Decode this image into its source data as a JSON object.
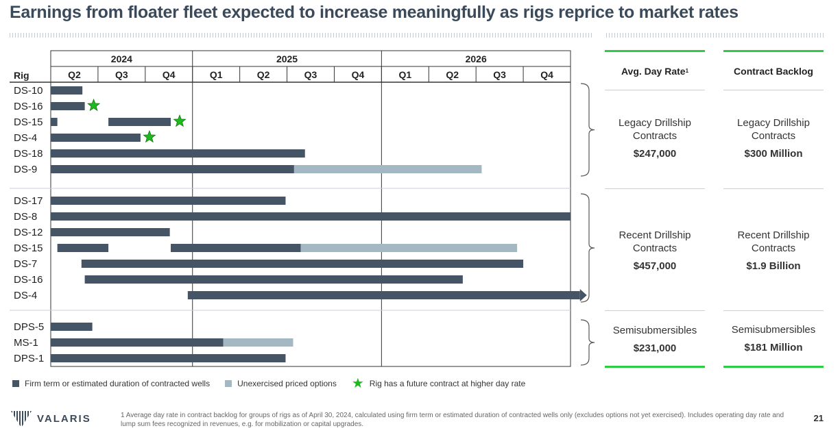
{
  "page": {
    "title": "Earnings from floater fleet expected to increase meaningfully as rigs reprice to market rates",
    "page_number": "21",
    "logo_text": "VALARIS",
    "footnote": "1 Average day rate in contract backlog for groups of rigs as of April 30, 2024, calculated using firm term or estimated duration of contracted wells only (excludes options not yet exercised). Includes operating day rate and lump sum fees recognized in revenues, e.g. for mobilization or capital upgrades."
  },
  "colors": {
    "firm": "#465566",
    "option": "#a4b8c4",
    "star": "#1fb81f",
    "accent": "#2ecc40",
    "title": "#3b4a5a"
  },
  "legend": {
    "firm": "Firm term or estimated duration of contracted wells",
    "option": "Unexercised priced options",
    "star": "Rig has a future contract at higher day rate"
  },
  "table": {
    "col_avg_header": "Avg. Day Rate",
    "col_avg_sup": "1",
    "col_backlog_header": "Contract Backlog",
    "groups": [
      {
        "label": "Legacy Drillship Contracts",
        "avg_day_rate": "$247,000",
        "backlog_label": "Legacy Drillship Contracts",
        "backlog": "$300 Million"
      },
      {
        "label": "Recent Drillship Contracts",
        "avg_day_rate": "$457,000",
        "backlog_label": "Recent Drillship Contracts",
        "backlog": "$1.9 Billion"
      },
      {
        "label": "Semisubmersibles",
        "avg_day_rate": "$231,000",
        "backlog_label": "Semisubmersibles",
        "backlog": "$181 Million"
      }
    ]
  },
  "chart_data": {
    "type": "gantt",
    "row_header": "Rig",
    "years": [
      "2024",
      "2025",
      "2026"
    ],
    "quarters": [
      {
        "year": "2024",
        "label": "Q2"
      },
      {
        "year": "2024",
        "label": "Q3"
      },
      {
        "year": "2024",
        "label": "Q4"
      },
      {
        "year": "2025",
        "label": "Q1"
      },
      {
        "year": "2025",
        "label": "Q2"
      },
      {
        "year": "2025",
        "label": "Q3"
      },
      {
        "year": "2025",
        "label": "Q4"
      },
      {
        "year": "2026",
        "label": "Q1"
      },
      {
        "year": "2026",
        "label": "Q2"
      },
      {
        "year": "2026",
        "label": "Q3"
      },
      {
        "year": "2026",
        "label": "Q4"
      }
    ],
    "time_unit": "quarters elapsed since start of 2024 Q2",
    "groups": [
      {
        "name": "Legacy Drillship Contracts",
        "rigs": [
          {
            "rig": "DS-10",
            "segments": [
              {
                "start": 0.0,
                "end": 0.67,
                "kind": "firm"
              }
            ],
            "star": false
          },
          {
            "rig": "DS-16",
            "segments": [
              {
                "start": 0.0,
                "end": 0.72,
                "kind": "firm"
              }
            ],
            "star": true
          },
          {
            "rig": "DS-15",
            "segments": [
              {
                "start": 0.0,
                "end": 0.14,
                "kind": "firm"
              },
              {
                "start": 1.22,
                "end": 2.54,
                "kind": "firm"
              }
            ],
            "star": true
          },
          {
            "rig": "DS-4",
            "segments": [
              {
                "start": 0.0,
                "end": 1.9,
                "kind": "firm"
              }
            ],
            "star": true
          },
          {
            "rig": "DS-18",
            "segments": [
              {
                "start": 0.0,
                "end": 5.38,
                "kind": "firm"
              }
            ],
            "star": false
          },
          {
            "rig": "DS-9",
            "segments": [
              {
                "start": 0.0,
                "end": 5.15,
                "kind": "firm"
              },
              {
                "start": 5.15,
                "end": 9.12,
                "kind": "option"
              }
            ],
            "star": false
          }
        ]
      },
      {
        "name": "Recent Drillship Contracts",
        "rigs": [
          {
            "rig": "DS-17",
            "segments": [
              {
                "start": 0.0,
                "end": 4.97,
                "kind": "firm"
              }
            ],
            "star": false
          },
          {
            "rig": "DS-8",
            "segments": [
              {
                "start": 0.0,
                "end": 11.0,
                "kind": "firm"
              }
            ],
            "star": false
          },
          {
            "rig": "DS-12",
            "segments": [
              {
                "start": 0.0,
                "end": 2.52,
                "kind": "firm"
              }
            ],
            "star": false
          },
          {
            "rig": "DS-15",
            "segments": [
              {
                "start": 0.14,
                "end": 1.22,
                "kind": "firm"
              },
              {
                "start": 2.54,
                "end": 5.29,
                "kind": "firm"
              },
              {
                "start": 5.29,
                "end": 9.87,
                "kind": "option"
              }
            ],
            "star": false
          },
          {
            "rig": "DS-7",
            "segments": [
              {
                "start": 0.65,
                "end": 10.0,
                "kind": "firm"
              }
            ],
            "star": false
          },
          {
            "rig": "DS-16",
            "segments": [
              {
                "start": 0.72,
                "end": 8.72,
                "kind": "firm"
              }
            ],
            "star": false
          },
          {
            "rig": "DS-4",
            "segments": [
              {
                "start": 2.9,
                "end": 11.2,
                "kind": "firm"
              }
            ],
            "star": false,
            "extends_beyond": true
          }
        ]
      },
      {
        "name": "Semisubmersibles",
        "rigs": [
          {
            "rig": "DPS-5",
            "segments": [
              {
                "start": 0.0,
                "end": 0.88,
                "kind": "firm"
              }
            ],
            "star": false
          },
          {
            "rig": "MS-1",
            "segments": [
              {
                "start": 0.0,
                "end": 3.65,
                "kind": "firm"
              },
              {
                "start": 3.65,
                "end": 5.13,
                "kind": "option"
              }
            ],
            "star": false
          },
          {
            "rig": "DPS-1",
            "segments": [
              {
                "start": 0.0,
                "end": 4.97,
                "kind": "firm"
              }
            ],
            "star": false
          }
        ]
      }
    ]
  }
}
